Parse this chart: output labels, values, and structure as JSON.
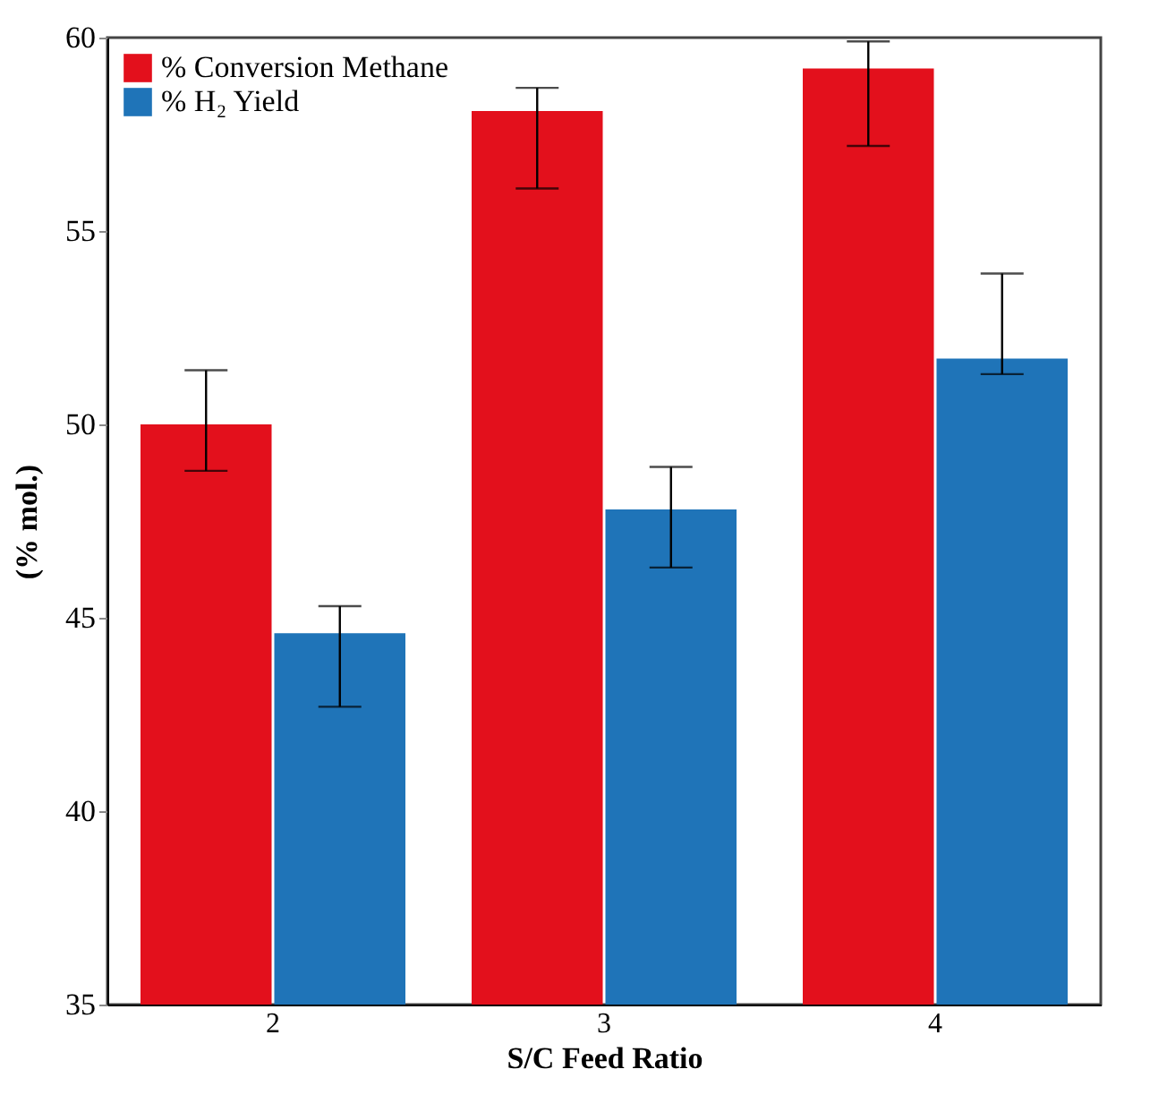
{
  "chart_data": {
    "type": "bar",
    "xlabel": "S/C Feed Ratio",
    "ylabel": "(% mol.)",
    "categories": [
      "2",
      "3",
      "4"
    ],
    "series": [
      {
        "name": "% Conversion Methane",
        "color": "#e3101c",
        "values": [
          50.0,
          58.1,
          59.2
        ],
        "errors": [
          [
            48.8,
            51.4
          ],
          [
            56.1,
            58.7
          ],
          [
            57.2,
            59.9
          ]
        ]
      },
      {
        "name": "% H₂ Yield",
        "color": "#1f74b8",
        "values": [
          44.6,
          47.8,
          51.7
        ],
        "errors": [
          [
            42.7,
            45.3
          ],
          [
            46.3,
            48.9
          ],
          [
            51.3,
            53.9
          ]
        ]
      }
    ],
    "ylim": [
      35,
      60
    ],
    "yticks": [
      35,
      40,
      45,
      50,
      55,
      60
    ],
    "grid": false,
    "legend": "top left"
  }
}
